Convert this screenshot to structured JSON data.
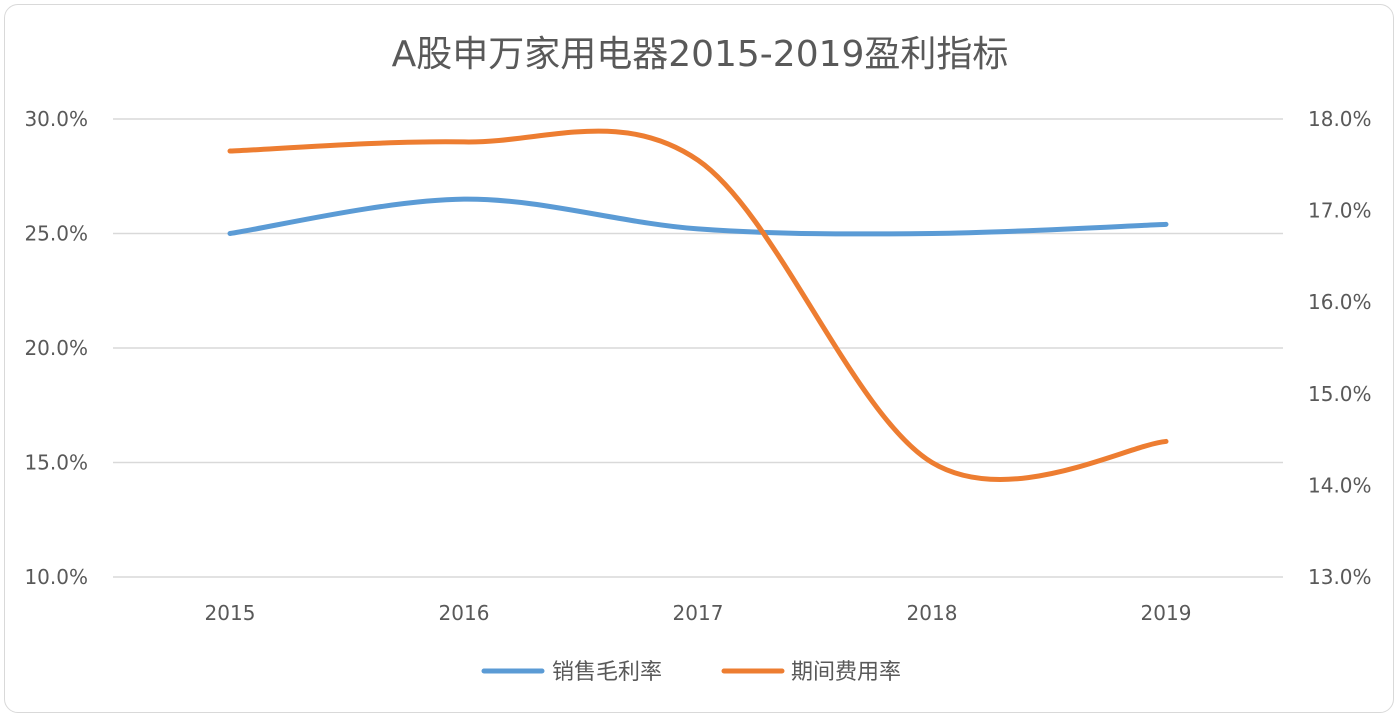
{
  "chart_data": {
    "type": "line",
    "title": "A股申万家用电器2015-2019盈利指标",
    "categories": [
      "2015",
      "2016",
      "2017",
      "2018",
      "2019"
    ],
    "series": [
      {
        "name": "销售毛利率",
        "axis": "left",
        "color": "#5b9bd5",
        "values": [
          0.25,
          0.265,
          0.252,
          0.25,
          0.254
        ]
      },
      {
        "name": "期间费用率",
        "axis": "right",
        "color": "#ed7d31",
        "values": [
          0.1765,
          0.1775,
          0.1755,
          0.1425,
          0.1448
        ]
      }
    ],
    "y_left": {
      "min": 0.1,
      "max": 0.3,
      "step": 0.05,
      "tick_labels": [
        "10.0%",
        "15.0%",
        "20.0%",
        "25.0%",
        "30.0%"
      ]
    },
    "y_right": {
      "min": 0.13,
      "max": 0.18,
      "step": 0.01,
      "tick_labels": [
        "13.0%",
        "14.0%",
        "15.0%",
        "16.0%",
        "17.0%",
        "18.0%"
      ]
    },
    "smooth": true,
    "grid": true,
    "legend_position": "bottom"
  }
}
